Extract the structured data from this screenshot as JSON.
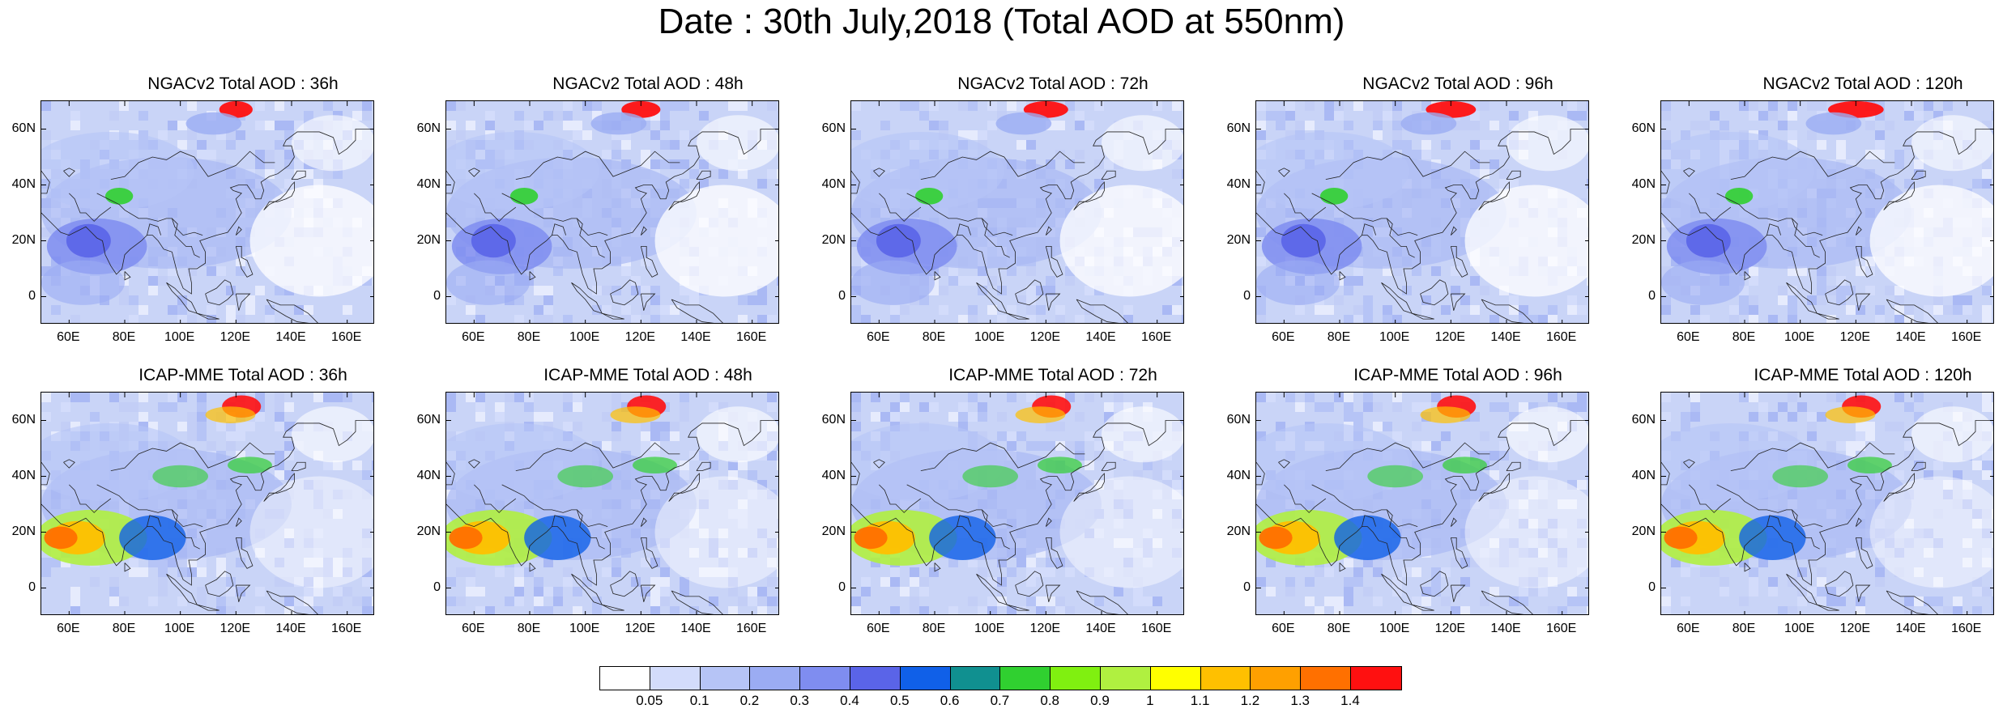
{
  "title": "Date : 30th July,2018 (Total AOD at 550nm)",
  "rows": [
    {
      "model": "NGACv2",
      "panels": [
        {
          "label": "NGACv2 Total AOD : 36h",
          "lead_hours": 36
        },
        {
          "label": "NGACv2 Total AOD : 48h",
          "lead_hours": 48
        },
        {
          "label": "NGACv2 Total AOD : 72h",
          "lead_hours": 72
        },
        {
          "label": "NGACv2 Total AOD : 96h",
          "lead_hours": 96
        },
        {
          "label": "NGACv2 Total AOD : 120h",
          "lead_hours": 120
        }
      ]
    },
    {
      "model": "ICAP-MME",
      "panels": [
        {
          "label": "ICAP-MME Total AOD : 36h",
          "lead_hours": 36
        },
        {
          "label": "ICAP-MME Total AOD : 48h",
          "lead_hours": 48
        },
        {
          "label": "ICAP-MME Total AOD : 72h",
          "lead_hours": 72
        },
        {
          "label": "ICAP-MME Total AOD : 96h",
          "lead_hours": 96
        },
        {
          "label": "ICAP-MME Total AOD : 120h",
          "lead_hours": 120
        }
      ]
    }
  ],
  "map_axes": {
    "lat_ticks": [
      "60N",
      "40N",
      "20N",
      "0"
    ],
    "lon_ticks": [
      "60E",
      "80E",
      "100E",
      "120E",
      "140E",
      "160E"
    ]
  },
  "colorbar": {
    "labels": [
      "0.05",
      "0.1",
      "0.2",
      "0.3",
      "0.4",
      "0.5",
      "0.6",
      "0.7",
      "0.8",
      "0.9",
      "1",
      "1.1",
      "1.2",
      "1.3",
      "1.4"
    ],
    "colors": [
      "#ffffff",
      "#d3dcfb",
      "#b6c4f6",
      "#9bacf3",
      "#7f8df0",
      "#5a64e8",
      "#1060e8",
      "#109090",
      "#30d030",
      "#80f010",
      "#b0f040",
      "#ffff00",
      "#ffc000",
      "#ffa000",
      "#ff7000",
      "#ff1010"
    ]
  }
}
